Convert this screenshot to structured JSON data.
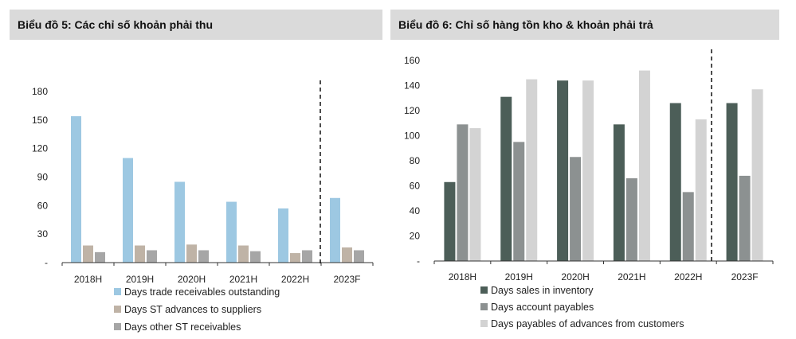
{
  "chart_data": [
    {
      "type": "bar",
      "title": "Biểu đồ 5: Các chỉ số khoản phải thu",
      "categories": [
        "2018H",
        "2019H",
        "2020H",
        "2021H",
        "2022H",
        "2023F"
      ],
      "series": [
        {
          "name": "Days trade receivables outstanding",
          "color": "#9dc8e2",
          "values": [
            154,
            110,
            85,
            64,
            57,
            68
          ]
        },
        {
          "name": "Days ST advances to suppliers",
          "color": "#bfb3a6",
          "values": [
            18,
            18,
            19,
            18,
            10,
            16
          ]
        },
        {
          "name": "Days other ST receivables",
          "color": "#a6a6a6",
          "values": [
            11,
            13,
            13,
            12,
            13,
            13
          ]
        }
      ],
      "yticks": [
        "-",
        "30",
        "60",
        "90",
        "120",
        "150",
        "180"
      ],
      "ylim": [
        0,
        180
      ],
      "forecast_divider_after": "2022H",
      "legend_position": "bottom"
    },
    {
      "type": "bar",
      "title": "Biểu đồ 6: Chỉ số hàng tồn kho & khoản phải trả",
      "categories": [
        "2018H",
        "2019H",
        "2020H",
        "2021H",
        "2022H",
        "2023F"
      ],
      "series": [
        {
          "name": "Days sales in inventory",
          "color": "#4c5e58",
          "values": [
            63,
            131,
            144,
            109,
            126,
            126
          ]
        },
        {
          "name": "Days account payables",
          "color": "#8c9191",
          "values": [
            109,
            95,
            83,
            66,
            55,
            68
          ]
        },
        {
          "name": "Days payables of advances from customers",
          "color": "#d3d3d3",
          "values": [
            106,
            145,
            144,
            152,
            113,
            137
          ]
        }
      ],
      "yticks": [
        "-",
        "20",
        "40",
        "60",
        "80",
        "100",
        "120",
        "140",
        "160"
      ],
      "ylim": [
        0,
        160
      ],
      "forecast_divider_after": "2022H",
      "legend_position": "bottom"
    }
  ]
}
